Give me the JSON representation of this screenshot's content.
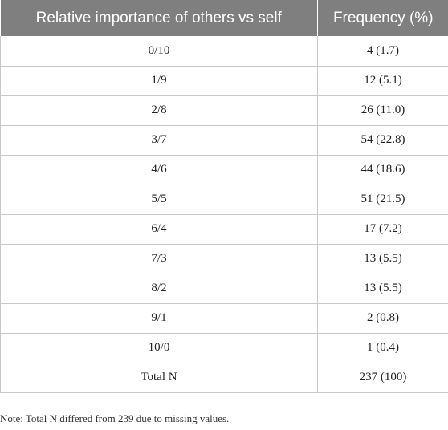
{
  "table": {
    "headers": [
      "Relative importance of others vs self",
      "Frequency (%)"
    ],
    "rows": [
      [
        "0/10",
        "4 (1.7)"
      ],
      [
        "1/9",
        "12 (5.1)"
      ],
      [
        "2/8",
        "26 (11.0)"
      ],
      [
        "3/7",
        "54 (22.8)"
      ],
      [
        "4/6",
        "44 (18.6)"
      ],
      [
        "5/5",
        "51 (21.5)"
      ],
      [
        "6/4",
        "17 (7.2)"
      ],
      [
        "7/3",
        "13 (5.5)"
      ],
      [
        "8/2",
        "13 (5.5)"
      ],
      [
        "9/1",
        "2 (0.8)"
      ],
      [
        "10/0",
        "1 (0.4)"
      ],
      [
        "Total N",
        "237 (100)"
      ]
    ]
  },
  "note": "Note: Total N differed from 239 due to missing values."
}
